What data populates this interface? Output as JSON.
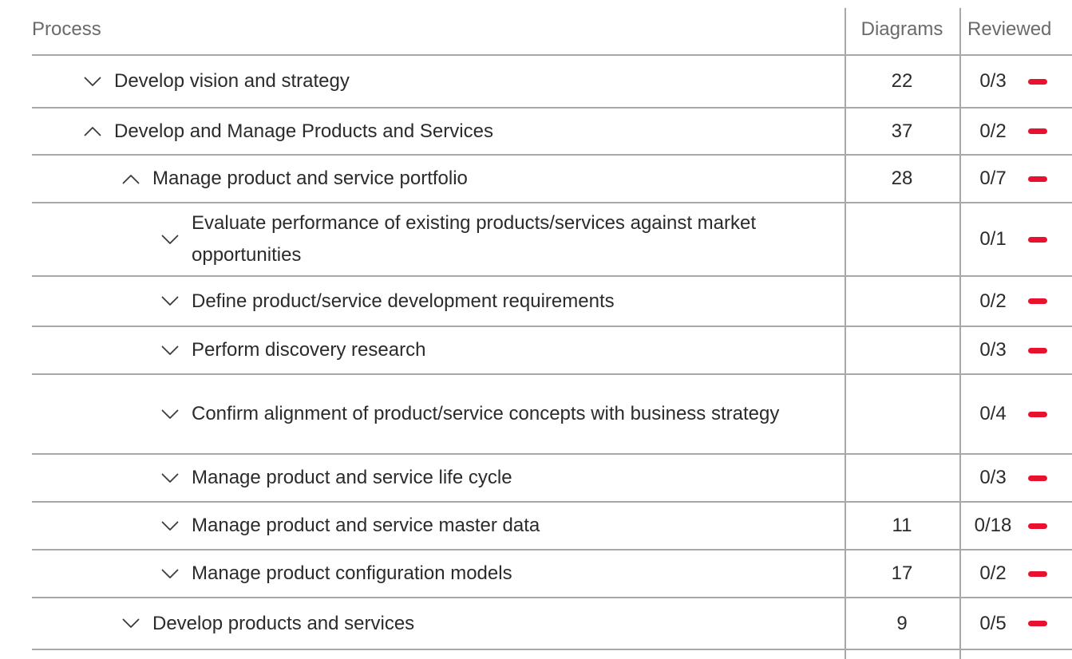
{
  "table": {
    "columns": {
      "process": "Process",
      "diagrams": "Diagrams",
      "reviewed": "Reviewed"
    },
    "rows": [
      {
        "level": 1,
        "expanded": false,
        "name": "Develop vision and strategy",
        "diagrams": "22",
        "reviewed": "0/3"
      },
      {
        "level": 1,
        "expanded": true,
        "name": "Develop and Manage Products and Services",
        "diagrams": "37",
        "reviewed": "0/2"
      },
      {
        "level": 2,
        "expanded": true,
        "name": "Manage product and service portfolio",
        "diagrams": "28",
        "reviewed": "0/7"
      },
      {
        "level": 3,
        "expanded": false,
        "name": "Evaluate performance of existing products/services against market opportunities",
        "diagrams": "",
        "reviewed": "0/1"
      },
      {
        "level": 3,
        "expanded": false,
        "name": "Define product/service development requirements",
        "diagrams": "",
        "reviewed": "0/2"
      },
      {
        "level": 3,
        "expanded": false,
        "name": "Perform discovery research",
        "diagrams": "",
        "reviewed": "0/3"
      },
      {
        "level": 3,
        "expanded": false,
        "name": "Confirm alignment of product/service concepts with business strategy",
        "diagrams": "",
        "reviewed": "0/4"
      },
      {
        "level": 3,
        "expanded": false,
        "name": "Manage product and service life cycle",
        "diagrams": "",
        "reviewed": "0/3"
      },
      {
        "level": 3,
        "expanded": false,
        "name": "Manage product and service master data",
        "diagrams": "11",
        "reviewed": "0/18"
      },
      {
        "level": 3,
        "expanded": false,
        "name": "Manage product configuration models",
        "diagrams": "17",
        "reviewed": "0/2"
      },
      {
        "level": 2,
        "expanded": false,
        "name": "Develop products and services",
        "diagrams": "9",
        "reviewed": "0/5"
      }
    ],
    "icons": {
      "expanded_icon": "chevron-up-icon",
      "collapsed_icon": "chevron-down-icon",
      "status_icon": "minus-icon"
    },
    "colors": {
      "status_red": "#e8112e",
      "grid_line": "#a8a8a8",
      "header_text": "#6a6a6a",
      "body_text": "#2b2b2b"
    }
  }
}
